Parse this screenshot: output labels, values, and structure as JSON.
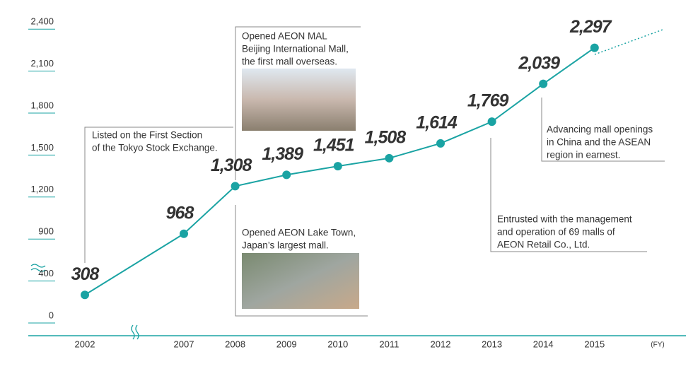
{
  "chart_data": {
    "type": "line",
    "categories": [
      "2002",
      "2007",
      "2008",
      "2009",
      "2010",
      "2011",
      "2012",
      "2013",
      "2014",
      "2015"
    ],
    "x_label": "(FY)",
    "series": [
      {
        "color": "#1aa3a3",
        "values": [
          308,
          968,
          1308,
          1389,
          1451,
          1508,
          1614,
          1769,
          2039,
          2297
        ],
        "value_labels": [
          "308",
          "968",
          "1,308",
          "1,389",
          "1,451",
          "1,508",
          "1,614",
          "1,769",
          "2,039",
          "2,297"
        ]
      }
    ],
    "highlight_color": "#1aa3a3",
    "ylim": [
      0,
      2400
    ],
    "yticks": [
      0,
      400,
      {
        "value": 900,
        "label": "900"
      },
      {
        "value": 1200,
        "label": "1,200"
      },
      {
        "value": 1500,
        "label": "1,500"
      },
      {
        "value": 1800,
        "label": "1,800"
      },
      {
        "value": 2100,
        "label": "2,100"
      },
      {
        "value": 2400,
        "label": "2,400"
      }
    ],
    "annotations": [
      {
        "lines": [
          "Listed on the First Section",
          "of the Tokyo Stock Exchange."
        ]
      },
      {
        "lines": [
          "Opened AEON MAL",
          "Beijing International Mall,",
          "the first mall overseas."
        ]
      },
      {
        "lines": [
          "Opened AEON Lake Town,",
          "Japan’s largest mall."
        ]
      },
      {
        "lines": [
          "Entrusted with the management",
          "and operation of 69 malls of",
          "AEON Retail Co., Ltd."
        ]
      },
      {
        "lines": [
          "Advancing mall openings",
          "in China and the ASEAN",
          "region in earnest."
        ]
      }
    ]
  }
}
